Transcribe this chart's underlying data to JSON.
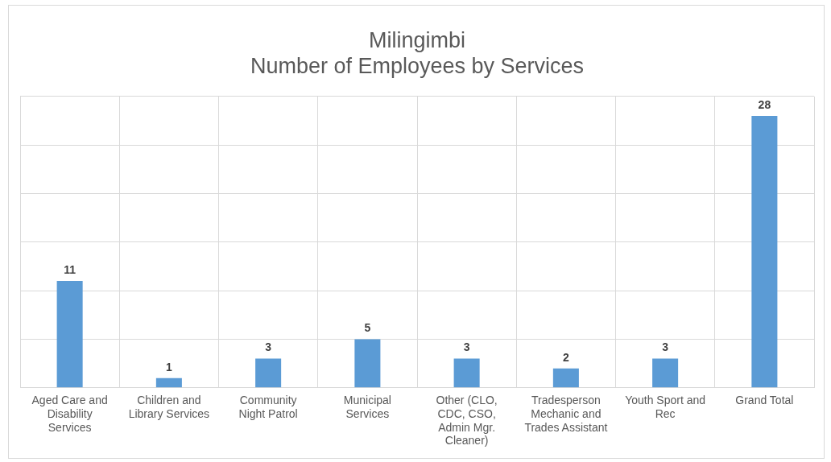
{
  "chart_data": {
    "type": "bar",
    "title": "Milingimbi\nNumber of Employees by Services",
    "categories": [
      "Aged Care and Disability Services",
      "Children and Library Services",
      "Community Night Patrol",
      "Municipal Services",
      "Other (CLO, CDC, CSO, Admin Mgr. Cleaner)",
      "Tradesperson Mechanic and Trades Assistant",
      "Youth Sport and Rec",
      "Grand Total"
    ],
    "values": [
      11,
      1,
      3,
      5,
      3,
      2,
      3,
      28
    ],
    "color": "#5b9bd5",
    "ylim": [
      0,
      30
    ],
    "yticks": [
      {
        "value": 0,
        "label": null
      },
      {
        "value": 5,
        "label": null
      },
      {
        "value": 10,
        "label": null
      },
      {
        "value": 15,
        "label": null
      },
      {
        "value": 20,
        "label": null
      },
      {
        "value": 25,
        "label": null
      },
      {
        "value": 30,
        "label": null
      }
    ],
    "tick_labels": "x",
    "grid": true,
    "data_labels": true,
    "legend": false
  }
}
